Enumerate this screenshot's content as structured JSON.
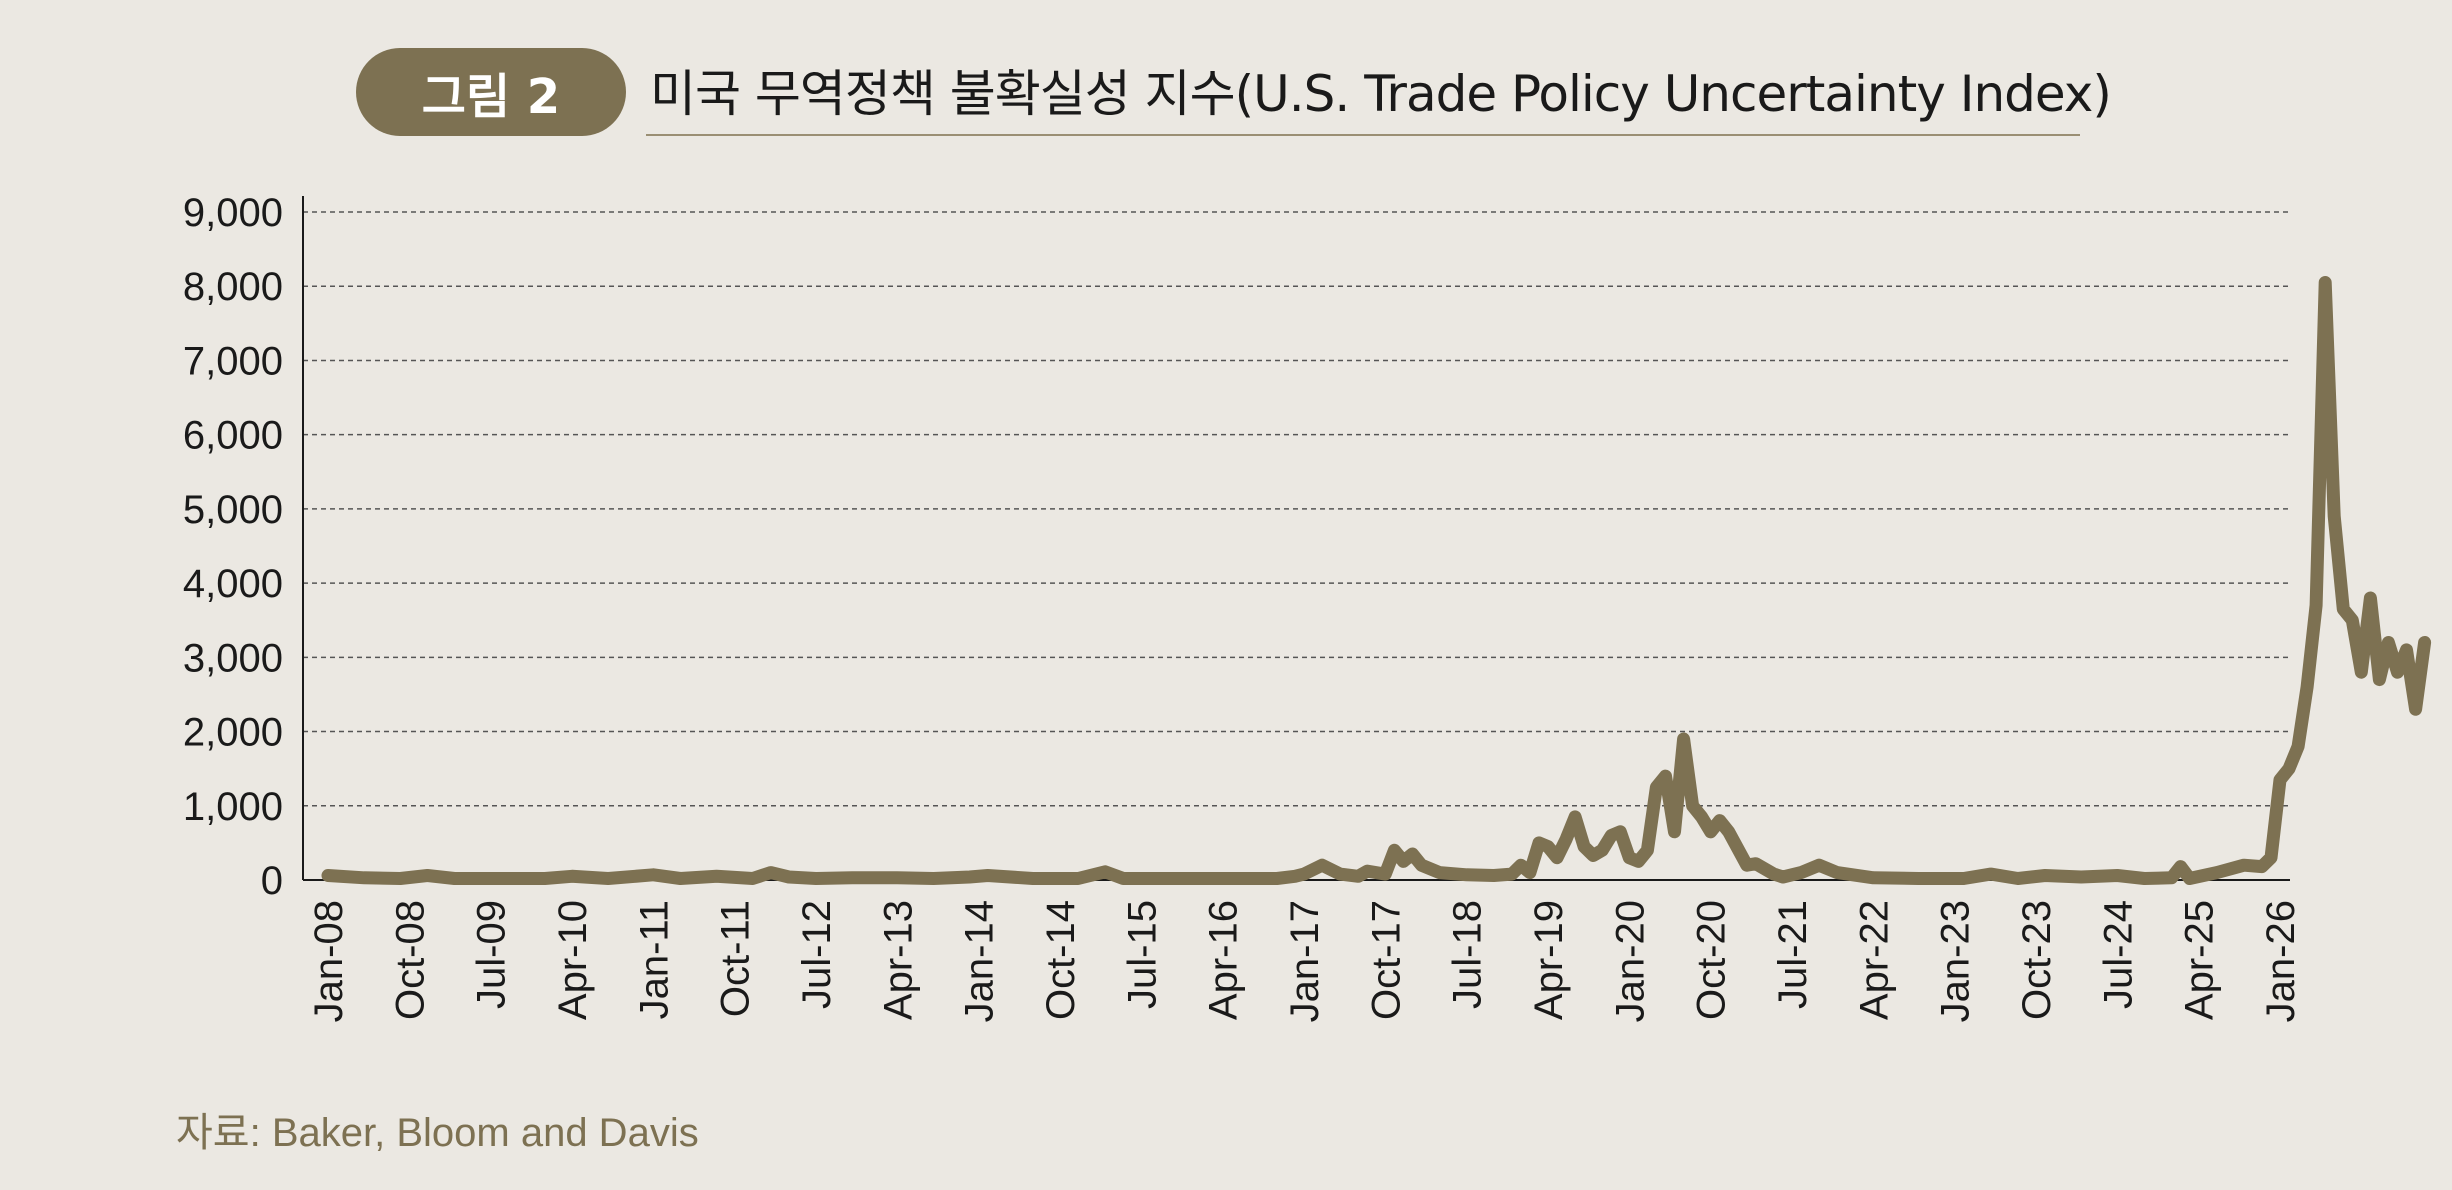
{
  "figure": {
    "label": "그림 2",
    "title": "미국 무역정책 불확실성 지수(U.S. Trade Policy Uncertainty Index)"
  },
  "source": "자료: Baker, Bloom and Davis",
  "colors": {
    "background": "#ebe8e2",
    "accent": "#7d7152",
    "line": "#7d7152",
    "grid": "#555555",
    "text": "#1a1a1a"
  },
  "chart_data": {
    "type": "line",
    "title": "미국 무역정책 불확실성 지수(U.S. Trade Policy Uncertainty Index)",
    "xlabel": "",
    "ylabel": "",
    "ylim": [
      0,
      9000
    ],
    "yticks": [
      "0",
      "1,000",
      "2,000",
      "3,000",
      "4,000",
      "5,000",
      "6,000",
      "7,000",
      "8,000",
      "9,000"
    ],
    "grid": "horizontal dashed",
    "legend": "none",
    "x_tick_labels": [
      "Jan-08",
      "Oct-08",
      "Jul-09",
      "Apr-10",
      "Jan-11",
      "Oct-11",
      "Jul-12",
      "Apr-13",
      "Jan-14",
      "Oct-14",
      "Jul-15",
      "Apr-16",
      "Jan-17",
      "Oct-17",
      "Jul-18",
      "Apr-19",
      "Jan-20",
      "Oct-20",
      "Jul-21",
      "Apr-22",
      "Jan-23",
      "Oct-23",
      "Jul-24",
      "Apr-25",
      "Jan-26"
    ],
    "series": [
      {
        "points": [
          [
            "2008-01",
            60
          ],
          [
            "2008-05",
            30
          ],
          [
            "2008-09",
            20
          ],
          [
            "2008-12",
            60
          ],
          [
            "2009-03",
            20
          ],
          [
            "2009-08",
            20
          ],
          [
            "2010-01",
            20
          ],
          [
            "2010-04",
            50
          ],
          [
            "2010-08",
            20
          ],
          [
            "2011-01",
            70
          ],
          [
            "2011-04",
            20
          ],
          [
            "2011-08",
            50
          ],
          [
            "2011-12",
            20
          ],
          [
            "2012-02",
            100
          ],
          [
            "2012-04",
            40
          ],
          [
            "2012-07",
            20
          ],
          [
            "2012-11",
            30
          ],
          [
            "2013-04",
            30
          ],
          [
            "2013-08",
            20
          ],
          [
            "2013-12",
            40
          ],
          [
            "2014-02",
            60
          ],
          [
            "2014-07",
            20
          ],
          [
            "2014-12",
            20
          ],
          [
            "2015-03",
            110
          ],
          [
            "2015-05",
            20
          ],
          [
            "2015-12",
            20
          ],
          [
            "2016-05",
            20
          ],
          [
            "2016-10",
            20
          ],
          [
            "2016-12",
            50
          ],
          [
            "2017-01",
            80
          ],
          [
            "2017-03",
            200
          ],
          [
            "2017-05",
            80
          ],
          [
            "2017-07",
            50
          ],
          [
            "2017-08",
            120
          ],
          [
            "2017-10",
            80
          ],
          [
            "2017-11",
            400
          ],
          [
            "2017-12",
            250
          ],
          [
            "2018-01",
            350
          ],
          [
            "2018-02",
            200
          ],
          [
            "2018-04",
            100
          ],
          [
            "2018-07",
            70
          ],
          [
            "2018-10",
            60
          ],
          [
            "2018-12",
            80
          ],
          [
            "2019-01",
            200
          ],
          [
            "2019-02",
            100
          ],
          [
            "2019-03",
            500
          ],
          [
            "2019-04",
            450
          ],
          [
            "2019-05",
            300
          ],
          [
            "2019-06",
            550
          ],
          [
            "2019-07",
            850
          ],
          [
            "2019-08",
            450
          ],
          [
            "2019-09",
            330
          ],
          [
            "2019-10",
            400
          ],
          [
            "2019-11",
            600
          ],
          [
            "2019-12",
            650
          ],
          [
            "2020-01",
            300
          ],
          [
            "2020-02",
            250
          ],
          [
            "2020-03",
            400
          ],
          [
            "2020-04",
            1250
          ],
          [
            "2020-05",
            1400
          ],
          [
            "2020-06",
            650
          ],
          [
            "2020-07",
            1900
          ],
          [
            "2020-08",
            1000
          ],
          [
            "2020-09",
            850
          ],
          [
            "2020-10",
            650
          ],
          [
            "2020-11",
            800
          ],
          [
            "2020-12",
            650
          ],
          [
            "2021-02",
            200
          ],
          [
            "2021-03",
            220
          ],
          [
            "2021-05",
            80
          ],
          [
            "2021-06",
            40
          ],
          [
            "2021-08",
            100
          ],
          [
            "2021-10",
            200
          ],
          [
            "2021-12",
            100
          ],
          [
            "2022-04",
            30
          ],
          [
            "2022-09",
            20
          ],
          [
            "2023-02",
            20
          ],
          [
            "2023-05",
            80
          ],
          [
            "2023-08",
            20
          ],
          [
            "2023-11",
            60
          ],
          [
            "2024-03",
            40
          ],
          [
            "2024-07",
            60
          ],
          [
            "2024-10",
            20
          ],
          [
            "2025-01",
            30
          ],
          [
            "2025-02",
            180
          ],
          [
            "2025-03",
            20
          ],
          [
            "2025-06",
            100
          ],
          [
            "2025-09",
            200
          ],
          [
            "2025-11",
            180
          ],
          [
            "2025-12",
            300
          ],
          [
            "2026-01",
            1350
          ],
          [
            "2026-02",
            1500
          ],
          [
            "2026-03",
            1800
          ],
          [
            "2026-04",
            2600
          ],
          [
            "2026-05",
            3700
          ],
          [
            "2026-06",
            8050
          ],
          [
            "2026-07",
            4900
          ],
          [
            "2026-08",
            3650
          ],
          [
            "2026-09",
            3500
          ],
          [
            "2026-10",
            2800
          ],
          [
            "2026-11",
            3800
          ],
          [
            "2026-12",
            2700
          ],
          [
            "2027-01",
            3200
          ],
          [
            "2027-02",
            2800
          ],
          [
            "2027-03",
            3100
          ],
          [
            "2027-04",
            2300
          ],
          [
            "2027-05",
            3200
          ]
        ]
      }
    ]
  }
}
